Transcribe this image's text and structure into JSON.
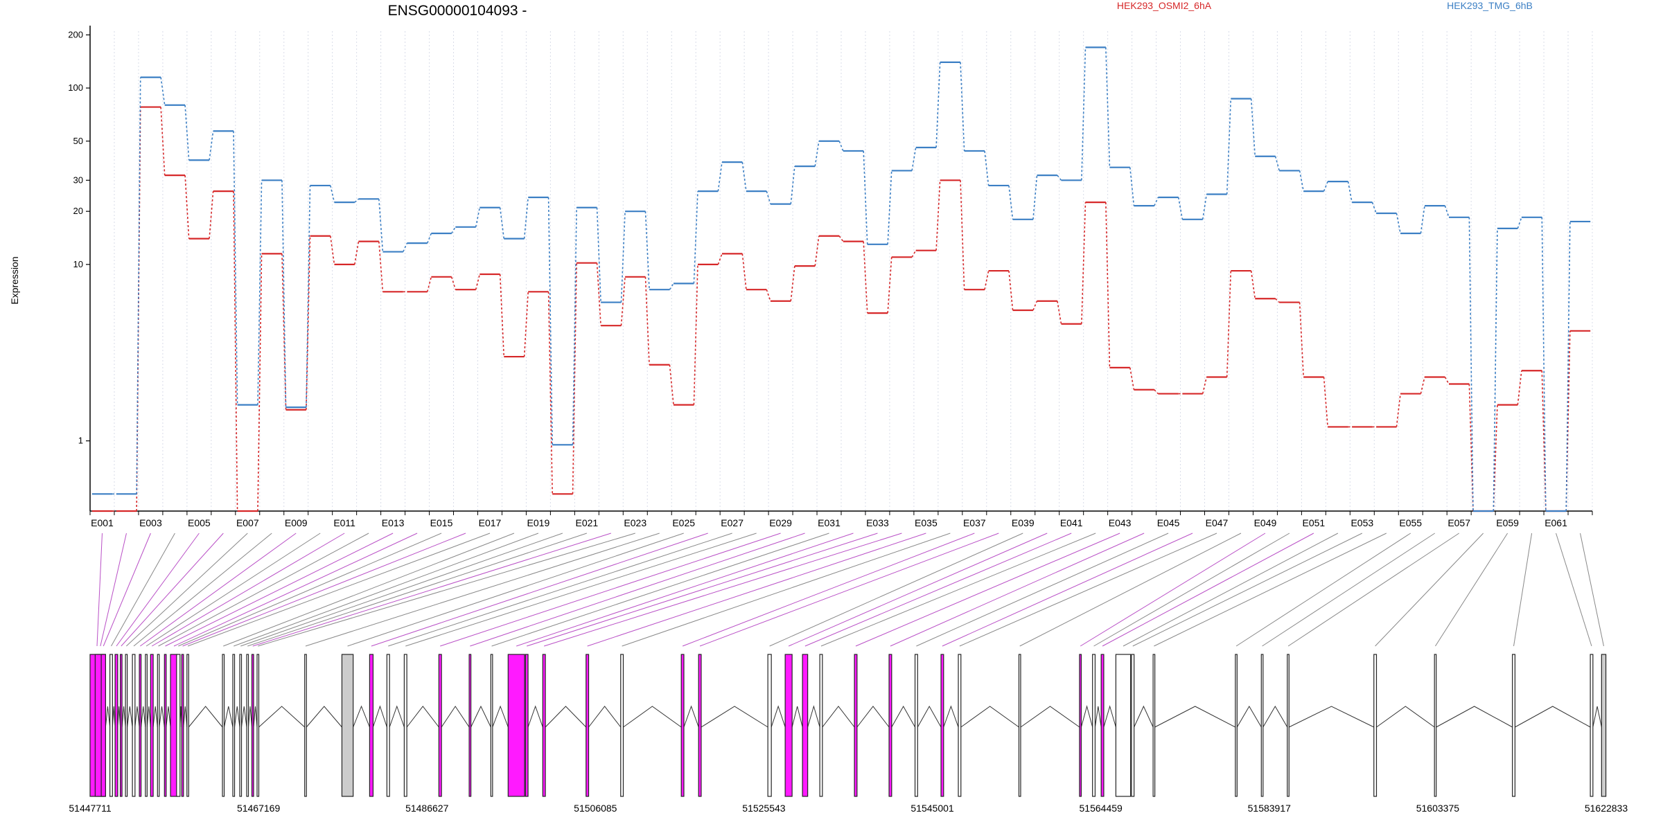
{
  "chart_data": {
    "type": "line",
    "title": "ENSG00000104093 -",
    "ylabel": "Expression",
    "y_scale": "log",
    "ylim": [
      0.4,
      210
    ],
    "y_ticks": [
      "1",
      "10",
      "20",
      "30",
      "50",
      "100",
      "200"
    ],
    "x_tick_labels": [
      "E001",
      "E003",
      "E005",
      "E007",
      "E009",
      "E011",
      "E013",
      "E015",
      "E017",
      "E019",
      "E021",
      "E023",
      "E025",
      "E027",
      "E029",
      "E031",
      "E033",
      "E035",
      "E037",
      "E039",
      "E041",
      "E043",
      "E045",
      "E047",
      "E049",
      "E051",
      "E053",
      "E055",
      "E057",
      "E059",
      "E061"
    ],
    "exon_count": 62,
    "series": [
      {
        "name": "HEK293_OSMI2_6hA",
        "color": "#d62728",
        "values": [
          0.4,
          0.4,
          78,
          32,
          14,
          26,
          0.4,
          11.5,
          1.5,
          14.5,
          10,
          13.5,
          7,
          7,
          8.5,
          7.2,
          8.8,
          3,
          7,
          0.5,
          10.2,
          4.5,
          8.5,
          2.7,
          1.6,
          10,
          11.5,
          7.2,
          6.2,
          9.8,
          14.5,
          13.5,
          5.3,
          11,
          12,
          30,
          7.2,
          9.2,
          5.5,
          6.2,
          4.6,
          22.5,
          2.6,
          1.95,
          1.85,
          1.85,
          2.3,
          9.2,
          6.4,
          6.1,
          2.3,
          1.2,
          1.2,
          1.2,
          1.85,
          2.3,
          2.1,
          0.4,
          1.6,
          2.5,
          0.4,
          4.2
        ]
      },
      {
        "name": "HEK293_TMG_6hB",
        "color": "#3b7fc4",
        "values": [
          0.5,
          0.5,
          115,
          80,
          39,
          57,
          1.6,
          30,
          1.55,
          28,
          22.5,
          23.5,
          11.8,
          13.2,
          15,
          16.3,
          21,
          14,
          24,
          0.95,
          21,
          6.1,
          20,
          7.2,
          7.8,
          26,
          38,
          26,
          22,
          36,
          50,
          44,
          13,
          34,
          46,
          140,
          44,
          28,
          18,
          32,
          30,
          170,
          35.5,
          21.5,
          24,
          18,
          25,
          87,
          41,
          34,
          26,
          29.5,
          22.5,
          19.5,
          15,
          21.5,
          18.5,
          0.4,
          16,
          18.5,
          0.4,
          17.5
        ]
      }
    ],
    "genomic": {
      "coord_labels": [
        "51447711",
        "51467169",
        "51486627",
        "51506085",
        "51525543",
        "51545001",
        "51564459",
        "51583917",
        "51603375",
        "51622833"
      ],
      "start": 51447711,
      "end": 51622833,
      "exon_colors": {
        "sig": "#ff1aff",
        "insig": "#ffffff",
        "gray": "#cccccc",
        "link_sig": "#b94fc6",
        "link_insig": "#888888"
      }
    }
  }
}
